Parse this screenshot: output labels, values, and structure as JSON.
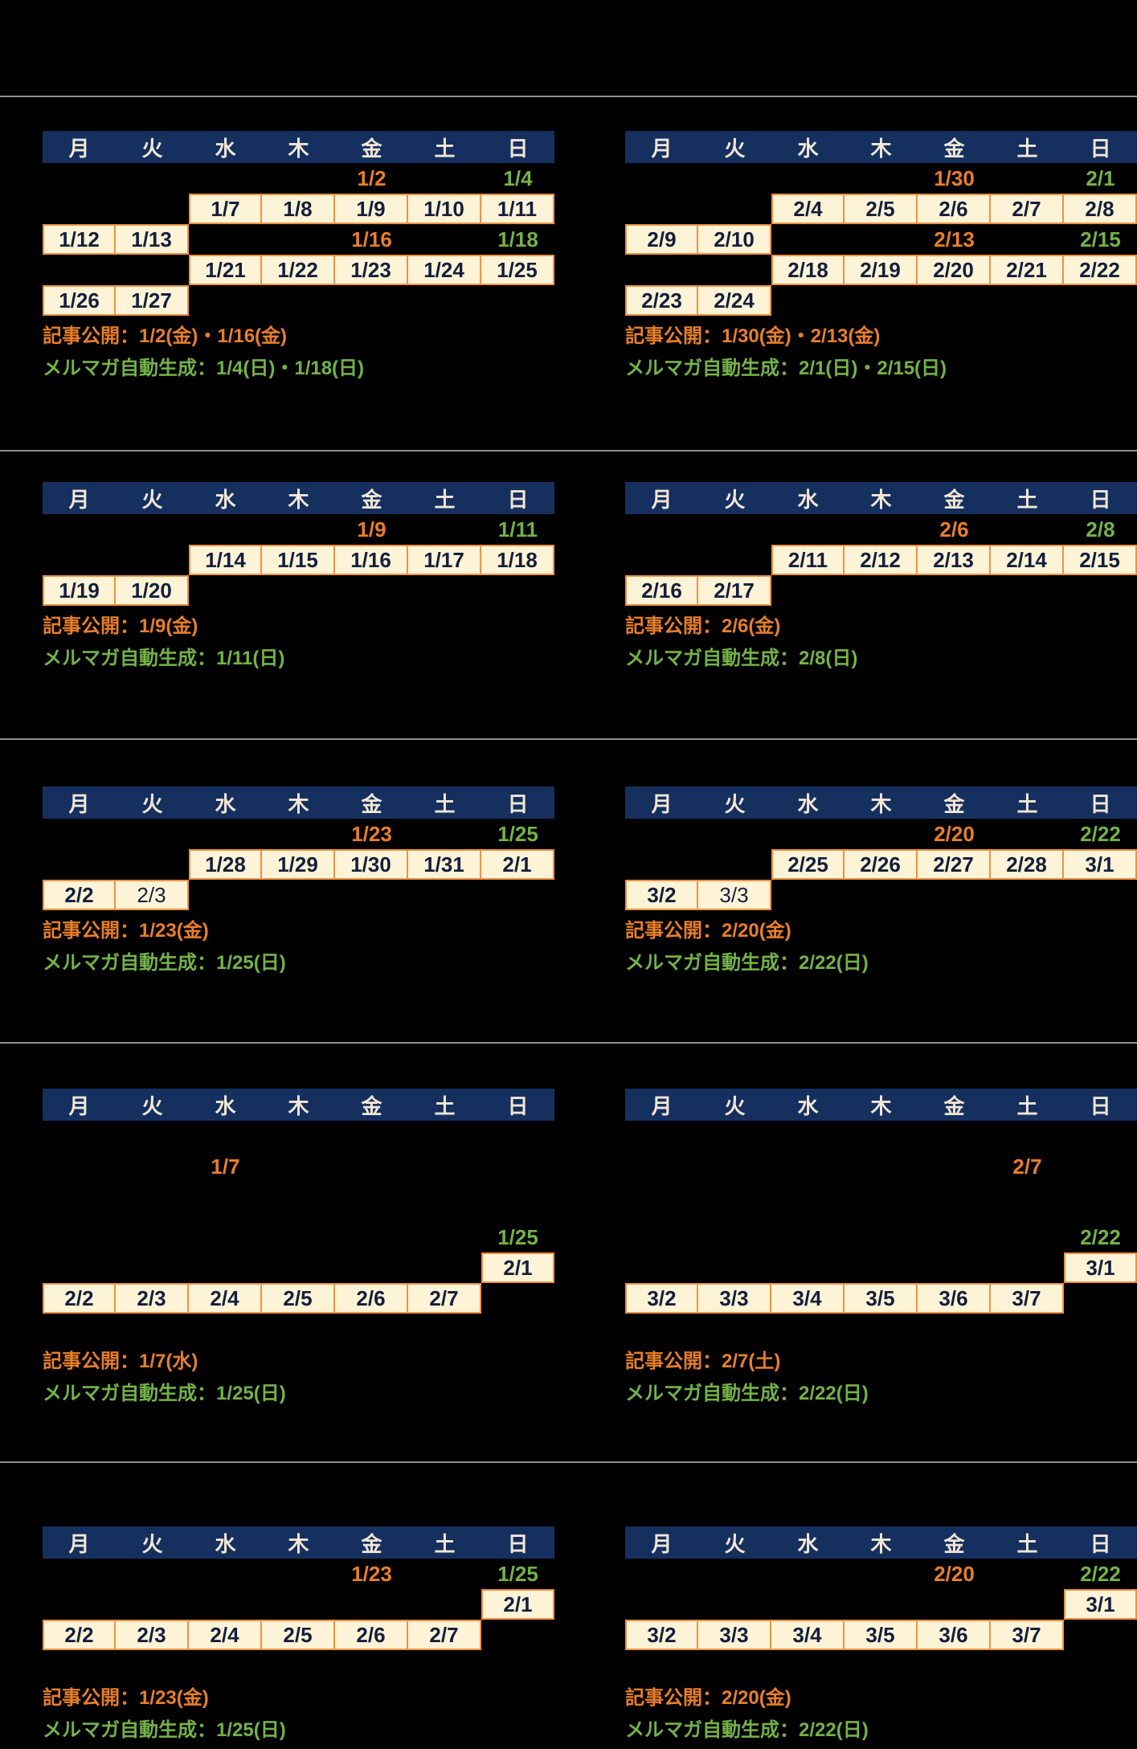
{
  "weekdays": [
    "月",
    "火",
    "水",
    "木",
    "金",
    "土",
    "日"
  ],
  "colors": {
    "background": "#000000",
    "separator_line": "#909090",
    "header_bg": "#15305f",
    "header_text": "#f2e6d6",
    "cell_bg": "#fdf3d6",
    "cell_border": "#ef9241",
    "date_text": "#131f3d",
    "publish_accent": "#e87f2a",
    "magazine_accent": "#73b347"
  },
  "legend": {
    "publish_label": "記事公開",
    "magazine_label": "メルマガ自動生成"
  },
  "sections": [
    {
      "left": {
        "rows": [
          [
            null,
            null,
            null,
            null,
            {
              "t": "pub",
              "v": "1/2"
            },
            null,
            {
              "t": "mag",
              "v": "1/4"
            }
          ],
          [
            null,
            null,
            {
              "t": "d",
              "v": "1/7"
            },
            {
              "t": "d",
              "v": "1/8"
            },
            {
              "t": "d",
              "v": "1/9"
            },
            {
              "t": "d",
              "v": "1/10"
            },
            {
              "t": "d",
              "v": "1/11"
            }
          ],
          [
            {
              "t": "d",
              "v": "1/12"
            },
            {
              "t": "d",
              "v": "1/13"
            },
            null,
            null,
            {
              "t": "pub",
              "v": "1/16"
            },
            null,
            {
              "t": "mag",
              "v": "1/18"
            }
          ],
          [
            null,
            null,
            {
              "t": "d",
              "v": "1/21"
            },
            {
              "t": "d",
              "v": "1/22"
            },
            {
              "t": "d",
              "v": "1/23"
            },
            {
              "t": "d",
              "v": "1/24"
            },
            {
              "t": "d",
              "v": "1/25"
            }
          ],
          [
            {
              "t": "d",
              "v": "1/26"
            },
            {
              "t": "d",
              "v": "1/27"
            },
            null,
            null,
            null,
            null,
            null
          ]
        ],
        "notes": [
          {
            "t": "pub",
            "v": "記事公開：1/2(金)・1/16(金)"
          },
          {
            "t": "mag",
            "v": "メルマガ自動生成：1/4(日)・1/18(日)"
          }
        ]
      },
      "right": {
        "rows": [
          [
            null,
            null,
            null,
            null,
            {
              "t": "pub",
              "v": "1/30"
            },
            null,
            {
              "t": "mag",
              "v": "2/1"
            }
          ],
          [
            null,
            null,
            {
              "t": "d",
              "v": "2/4"
            },
            {
              "t": "d",
              "v": "2/5"
            },
            {
              "t": "d",
              "v": "2/6"
            },
            {
              "t": "d",
              "v": "2/7"
            },
            {
              "t": "d",
              "v": "2/8"
            }
          ],
          [
            {
              "t": "d",
              "v": "2/9"
            },
            {
              "t": "d",
              "v": "2/10"
            },
            null,
            null,
            {
              "t": "pub",
              "v": "2/13"
            },
            null,
            {
              "t": "mag",
              "v": "2/15"
            }
          ],
          [
            null,
            null,
            {
              "t": "d",
              "v": "2/18"
            },
            {
              "t": "d",
              "v": "2/19"
            },
            {
              "t": "d",
              "v": "2/20"
            },
            {
              "t": "d",
              "v": "2/21"
            },
            {
              "t": "d",
              "v": "2/22"
            }
          ],
          [
            {
              "t": "d",
              "v": "2/23"
            },
            {
              "t": "d",
              "v": "2/24"
            },
            null,
            null,
            null,
            null,
            null
          ]
        ],
        "notes": [
          {
            "t": "pub",
            "v": "記事公開：1/30(金)・2/13(金)"
          },
          {
            "t": "mag",
            "v": "メルマガ自動生成：2/1(日)・2/15(日)"
          }
        ]
      }
    },
    {
      "left": {
        "rows": [
          [
            null,
            null,
            null,
            null,
            {
              "t": "pub",
              "v": "1/9"
            },
            null,
            {
              "t": "mag",
              "v": "1/11"
            }
          ],
          [
            null,
            null,
            {
              "t": "d",
              "v": "1/14"
            },
            {
              "t": "d",
              "v": "1/15"
            },
            {
              "t": "d",
              "v": "1/16"
            },
            {
              "t": "d",
              "v": "1/17"
            },
            {
              "t": "d",
              "v": "1/18"
            }
          ],
          [
            {
              "t": "d",
              "v": "1/19"
            },
            {
              "t": "d",
              "v": "1/20"
            },
            null,
            null,
            null,
            null,
            null
          ]
        ],
        "notes": [
          {
            "t": "pub",
            "v": "記事公開：1/9(金)"
          },
          {
            "t": "mag",
            "v": "メルマガ自動生成：1/11(日)"
          }
        ]
      },
      "right": {
        "rows": [
          [
            null,
            null,
            null,
            null,
            {
              "t": "pub",
              "v": "2/6"
            },
            null,
            {
              "t": "mag",
              "v": "2/8"
            }
          ],
          [
            null,
            null,
            {
              "t": "d",
              "v": "2/11"
            },
            {
              "t": "d",
              "v": "2/12"
            },
            {
              "t": "d",
              "v": "2/13"
            },
            {
              "t": "d",
              "v": "2/14"
            },
            {
              "t": "d",
              "v": "2/15"
            }
          ],
          [
            {
              "t": "d",
              "v": "2/16"
            },
            {
              "t": "d",
              "v": "2/17"
            },
            null,
            null,
            null,
            null,
            null
          ]
        ],
        "notes": [
          {
            "t": "pub",
            "v": "記事公開：2/6(金)"
          },
          {
            "t": "mag",
            "v": "メルマガ自動生成：2/8(日)"
          }
        ]
      }
    },
    {
      "left": {
        "rows": [
          [
            null,
            null,
            null,
            null,
            {
              "t": "pub",
              "v": "1/23"
            },
            null,
            {
              "t": "mag",
              "v": "1/25"
            }
          ],
          [
            null,
            null,
            {
              "t": "d",
              "v": "1/28"
            },
            {
              "t": "d",
              "v": "1/29"
            },
            {
              "t": "d",
              "v": "1/30"
            },
            {
              "t": "d",
              "v": "1/31"
            },
            {
              "t": "d",
              "v": "2/1"
            }
          ],
          [
            {
              "t": "d",
              "v": "2/2"
            },
            {
              "t": "d",
              "v": "2/3",
              "b": 0
            },
            null,
            null,
            null,
            null,
            null
          ]
        ],
        "notes": [
          {
            "t": "pub",
            "v": "記事公開：1/23(金)"
          },
          {
            "t": "mag",
            "v": "メルマガ自動生成：1/25(日)"
          }
        ]
      },
      "right": {
        "rows": [
          [
            null,
            null,
            null,
            null,
            {
              "t": "pub",
              "v": "2/20"
            },
            null,
            {
              "t": "mag",
              "v": "2/22"
            }
          ],
          [
            null,
            null,
            {
              "t": "d",
              "v": "2/25"
            },
            {
              "t": "d",
              "v": "2/26"
            },
            {
              "t": "d",
              "v": "2/27"
            },
            {
              "t": "d",
              "v": "2/28"
            },
            {
              "t": "d",
              "v": "3/1"
            }
          ],
          [
            {
              "t": "d",
              "v": "3/2"
            },
            {
              "t": "d",
              "v": "3/3",
              "b": 0
            },
            null,
            null,
            null,
            null,
            null
          ]
        ],
        "notes": [
          {
            "t": "pub",
            "v": "記事公開：2/20(金)"
          },
          {
            "t": "mag",
            "v": "メルマガ自動生成：2/22(日)"
          }
        ]
      }
    },
    {
      "left": {
        "rows": [
          [
            null,
            null,
            null,
            null,
            null,
            null,
            null
          ],
          [
            null,
            null,
            {
              "t": "pub",
              "v": "1/7"
            },
            null,
            null,
            null,
            null
          ],
          [
            null,
            null,
            null,
            null,
            null,
            null,
            null
          ],
          [
            null,
            null,
            null,
            null,
            null,
            null,
            {
              "t": "mag",
              "v": "1/25"
            }
          ],
          [
            null,
            null,
            null,
            null,
            null,
            null,
            {
              "t": "d",
              "v": "2/1"
            }
          ],
          [
            {
              "t": "d",
              "v": "2/2"
            },
            {
              "t": "d",
              "v": "2/3"
            },
            {
              "t": "d",
              "v": "2/4"
            },
            {
              "t": "d",
              "v": "2/5"
            },
            {
              "t": "d",
              "v": "2/6"
            },
            {
              "t": "d",
              "v": "2/7"
            },
            null
          ]
        ],
        "notes": [
          {
            "t": "pub",
            "v": "記事公開：1/7(水)"
          },
          {
            "t": "mag",
            "v": "メルマガ自動生成：1/25(日)"
          }
        ]
      },
      "right": {
        "rows": [
          [
            null,
            null,
            null,
            null,
            null,
            null,
            null
          ],
          [
            null,
            null,
            null,
            null,
            null,
            {
              "t": "pub",
              "v": "2/7"
            },
            null
          ],
          [
            null,
            null,
            null,
            null,
            null,
            null,
            null
          ],
          [
            null,
            null,
            null,
            null,
            null,
            null,
            {
              "t": "mag",
              "v": "2/22"
            }
          ],
          [
            null,
            null,
            null,
            null,
            null,
            null,
            {
              "t": "d",
              "v": "3/1"
            }
          ],
          [
            {
              "t": "d",
              "v": "3/2"
            },
            {
              "t": "d",
              "v": "3/3"
            },
            {
              "t": "d",
              "v": "3/4"
            },
            {
              "t": "d",
              "v": "3/5"
            },
            {
              "t": "d",
              "v": "3/6"
            },
            {
              "t": "d",
              "v": "3/7"
            },
            null
          ]
        ],
        "notes": [
          {
            "t": "pub",
            "v": "記事公開：2/7(土)"
          },
          {
            "t": "mag",
            "v": "メルマガ自動生成：2/22(日)"
          }
        ]
      }
    },
    {
      "left": {
        "rows": [
          [
            null,
            null,
            null,
            null,
            {
              "t": "pub",
              "v": "1/23"
            },
            null,
            {
              "t": "mag",
              "v": "1/25"
            }
          ],
          [
            null,
            null,
            null,
            null,
            null,
            null,
            {
              "t": "d",
              "v": "2/1"
            }
          ],
          [
            {
              "t": "d",
              "v": "2/2"
            },
            {
              "t": "d",
              "v": "2/3"
            },
            {
              "t": "d",
              "v": "2/4"
            },
            {
              "t": "d",
              "v": "2/5"
            },
            {
              "t": "d",
              "v": "2/6"
            },
            {
              "t": "d",
              "v": "2/7"
            },
            null
          ]
        ],
        "notes": [
          {
            "t": "pub",
            "v": "記事公開：1/23(金)"
          },
          {
            "t": "mag",
            "v": "メルマガ自動生成：1/25(日)"
          }
        ]
      },
      "right": {
        "rows": [
          [
            null,
            null,
            null,
            null,
            {
              "t": "pub",
              "v": "2/20"
            },
            null,
            {
              "t": "mag",
              "v": "2/22"
            }
          ],
          [
            null,
            null,
            null,
            null,
            null,
            null,
            {
              "t": "d",
              "v": "3/1"
            }
          ],
          [
            {
              "t": "d",
              "v": "3/2"
            },
            {
              "t": "d",
              "v": "3/3"
            },
            {
              "t": "d",
              "v": "3/4"
            },
            {
              "t": "d",
              "v": "3/5"
            },
            {
              "t": "d",
              "v": "3/6"
            },
            {
              "t": "d",
              "v": "3/7"
            },
            null
          ]
        ],
        "notes": [
          {
            "t": "pub",
            "v": "記事公開：2/20(金)"
          },
          {
            "t": "mag",
            "v": "メルマガ自動生成：2/22(日)"
          }
        ]
      }
    }
  ]
}
